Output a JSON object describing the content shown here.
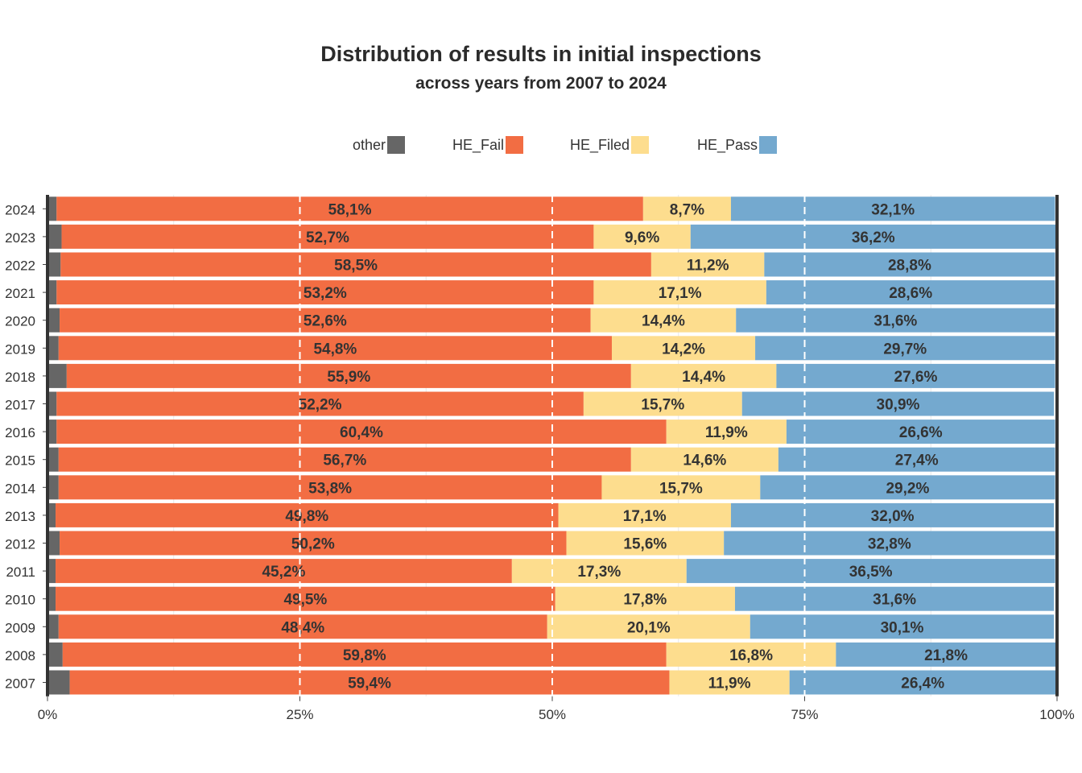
{
  "chart_data": {
    "type": "bar",
    "orientation": "horizontal",
    "stacked": "percent",
    "title": "Distribution of results in initial inspections",
    "subtitle": "across years from 2007 to 2024",
    "categories": [
      "2024",
      "2023",
      "2022",
      "2021",
      "2020",
      "2019",
      "2018",
      "2017",
      "2016",
      "2015",
      "2014",
      "2013",
      "2012",
      "2011",
      "2010",
      "2009",
      "2008",
      "2007"
    ],
    "series": [
      {
        "name": "other",
        "color": "#666666",
        "values": [
          0.9,
          1.4,
          1.3,
          0.9,
          1.2,
          1.1,
          1.9,
          0.9,
          0.9,
          1.1,
          1.1,
          0.8,
          1.2,
          0.8,
          0.8,
          1.1,
          1.5,
          2.2
        ]
      },
      {
        "name": "HE_Fail",
        "color": "#F26D43",
        "values": [
          58.1,
          52.7,
          58.5,
          53.2,
          52.6,
          54.8,
          55.9,
          52.2,
          60.4,
          56.7,
          53.8,
          49.8,
          50.2,
          45.2,
          49.5,
          48.4,
          59.8,
          59.4
        ]
      },
      {
        "name": "HE_Filed",
        "color": "#FDDD8E",
        "values": [
          8.7,
          9.6,
          11.2,
          17.1,
          14.4,
          14.2,
          14.4,
          15.7,
          11.9,
          14.6,
          15.7,
          17.1,
          15.6,
          17.3,
          17.8,
          20.1,
          16.8,
          11.9
        ]
      },
      {
        "name": "HE_Pass",
        "color": "#74A9CF",
        "values": [
          32.1,
          36.2,
          28.8,
          28.6,
          31.6,
          29.7,
          27.6,
          30.9,
          26.6,
          27.4,
          29.2,
          32.0,
          32.8,
          36.5,
          31.6,
          30.1,
          21.8,
          26.4
        ]
      }
    ],
    "data_labels": {
      "HE_Fail": [
        "58,1%",
        "52,7%",
        "58,5%",
        "53,2%",
        "52,6%",
        "54,8%",
        "55,9%",
        "52,2%",
        "60,4%",
        "56,7%",
        "53,8%",
        "49,8%",
        "50,2%",
        "45,2%",
        "49,5%",
        "48,4%",
        "59,8%",
        "59,4%"
      ],
      "HE_Filed": [
        "8,7%",
        "9,6%",
        "11,2%",
        "17,1%",
        "14,4%",
        "14,2%",
        "14,4%",
        "15,7%",
        "11,9%",
        "14,6%",
        "15,7%",
        "17,1%",
        "15,6%",
        "17,3%",
        "17,8%",
        "20,1%",
        "16,8%",
        "11,9%"
      ],
      "HE_Pass": [
        "32,1%",
        "36,2%",
        "28,8%",
        "28,6%",
        "31,6%",
        "29,7%",
        "27,6%",
        "30,9%",
        "26,6%",
        "27,4%",
        "29,2%",
        "32,0%",
        "32,8%",
        "36,5%",
        "31,6%",
        "30,1%",
        "21,8%",
        "26,4%"
      ]
    },
    "x_ticks": [
      0,
      25,
      50,
      75,
      100
    ],
    "x_tick_labels": [
      "0%",
      "25%",
      "50%",
      "75%",
      "100%"
    ],
    "xlim": [
      0,
      100
    ],
    "grid": "dashed vertical lines at 25%, 50%, 75%",
    "legend_position": "top"
  }
}
